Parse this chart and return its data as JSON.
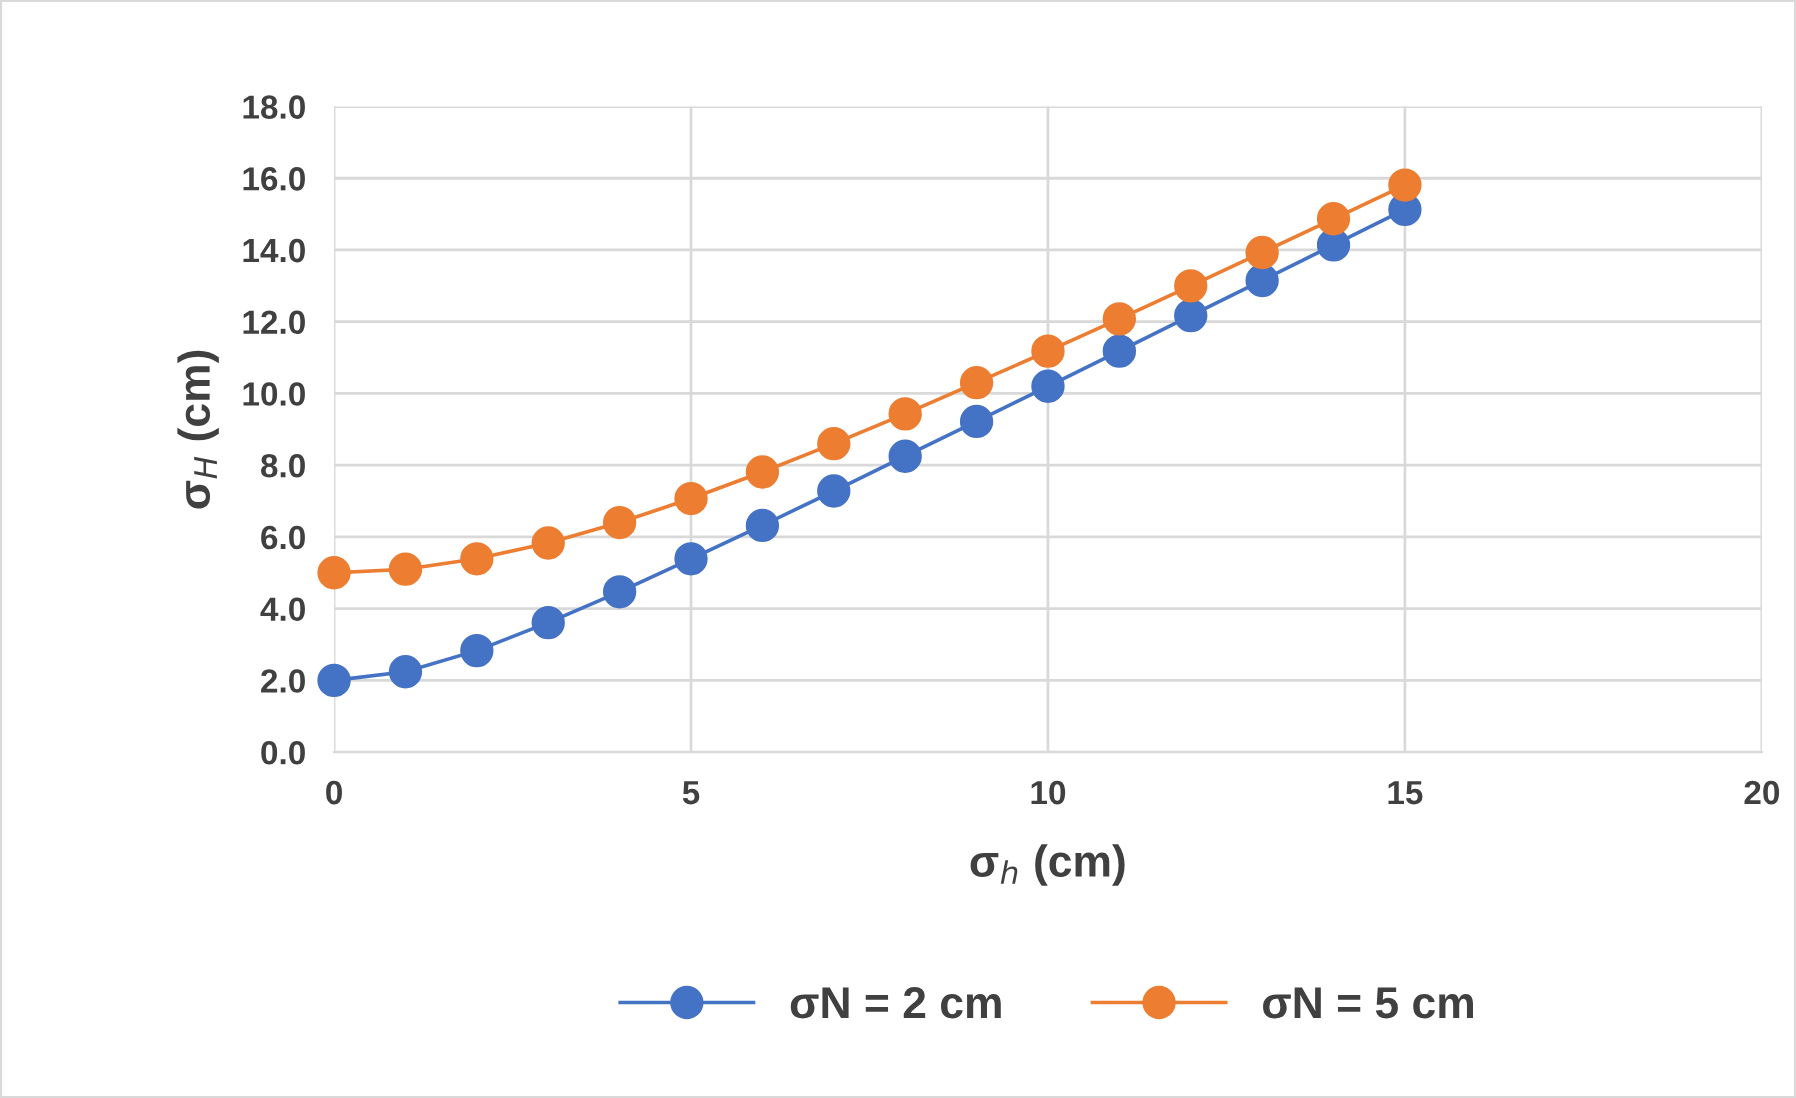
{
  "chart_data": {
    "type": "line",
    "xlabel": "σ$_{h}$ (cm)",
    "ylabel": "σ$_{H}$ (cm)",
    "x": [
      0,
      1,
      2,
      3,
      4,
      5,
      6,
      7,
      8,
      9,
      10,
      11,
      12,
      13,
      14,
      15
    ],
    "series": [
      {
        "name": "σN = 2 cm",
        "color": "#4472c4",
        "values": [
          2.0,
          2.24,
          2.83,
          3.61,
          4.47,
          5.39,
          6.32,
          7.28,
          8.25,
          9.22,
          10.2,
          11.18,
          12.17,
          13.15,
          14.14,
          15.13
        ]
      },
      {
        "name": "σN = 5 cm",
        "color": "#ed7d31",
        "values": [
          5.0,
          5.1,
          5.39,
          5.83,
          6.4,
          7.07,
          7.81,
          8.6,
          9.43,
          10.3,
          11.18,
          12.08,
          13.0,
          13.93,
          14.87,
          15.81
        ]
      }
    ],
    "xlim": [
      0,
      20
    ],
    "xticks": [
      0,
      5,
      10,
      15,
      20
    ],
    "ylim": [
      0,
      18
    ],
    "yticks": [
      {
        "value": 0,
        "label": "0.0"
      },
      {
        "value": 2,
        "label": "2.0"
      },
      {
        "value": 4,
        "label": "4.0"
      },
      {
        "value": 6,
        "label": "6.0"
      },
      {
        "value": 8,
        "label": "8.0"
      },
      {
        "value": 10,
        "label": "10.0"
      },
      {
        "value": 12,
        "label": "12.0"
      },
      {
        "value": 14,
        "label": "14.0"
      },
      {
        "value": 16,
        "label": "16.0"
      },
      {
        "value": 18,
        "label": "18.0"
      }
    ],
    "grid": true,
    "legend": "bottom",
    "marker": "circle",
    "line_style": "solid"
  }
}
